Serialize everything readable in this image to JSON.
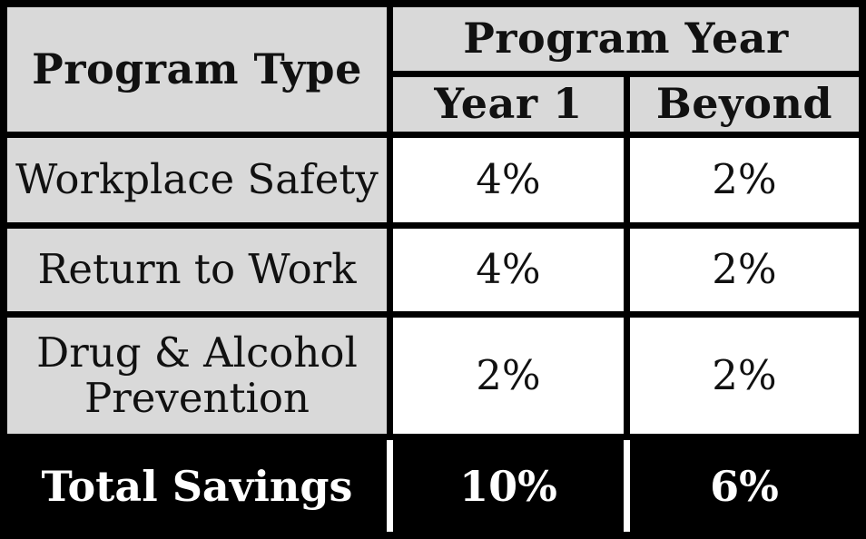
{
  "colors": {
    "header_label_bg": "#d9d9d9",
    "data_cell_bg": "#ffffff",
    "border": "#000000",
    "total_row_bg": "#000000",
    "total_row_text": "#ffffff",
    "text": "#111111"
  },
  "table": {
    "header": {
      "program_type": "Program Type",
      "program_year": "Program Year",
      "year1": "Year 1",
      "beyond": "Beyond"
    },
    "rows": [
      {
        "label": "Workplace Safety",
        "year1": "4%",
        "beyond": "2%"
      },
      {
        "label": "Return to Work",
        "year1": "4%",
        "beyond": "2%"
      },
      {
        "label": "Drug & Alcohol Prevention",
        "year1": "2%",
        "beyond": "2%"
      }
    ],
    "total": {
      "label": "Total Savings",
      "year1": "10%",
      "beyond": "6%"
    }
  },
  "chart_data": {
    "type": "table",
    "title": "",
    "column_group_header": "Program Year",
    "columns": [
      "Program Type",
      "Year 1",
      "Beyond"
    ],
    "rows": [
      [
        "Workplace Safety",
        "4%",
        "2%"
      ],
      [
        "Return to Work",
        "4%",
        "2%"
      ],
      [
        "Drug & Alcohol Prevention",
        "2%",
        "2%"
      ],
      [
        "Total Savings",
        "10%",
        "6%"
      ]
    ],
    "notes": "Year 1 and Beyond are sub-columns under Program Year; percentages are savings per program; Total Savings row is highlighted black with white text."
  }
}
